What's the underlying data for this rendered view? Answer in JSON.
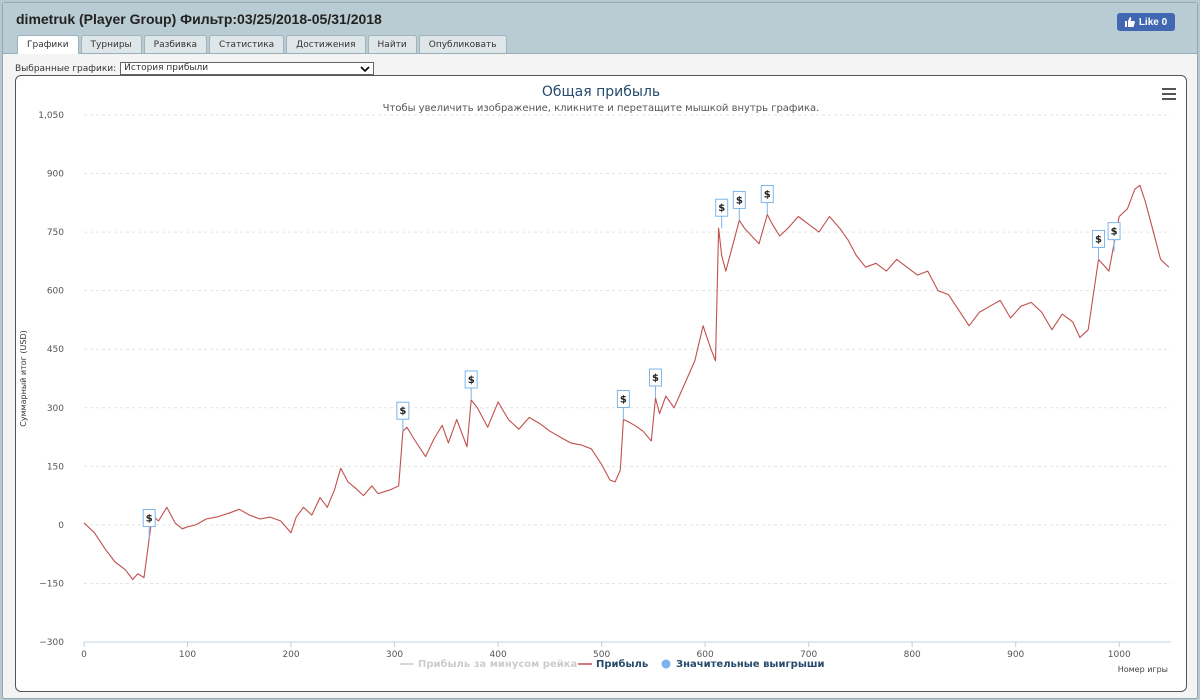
{
  "window": {
    "title": "dimetruk (Player Group) Фильтр:03/25/2018-05/31/2018"
  },
  "facebook": {
    "label": "Like 0"
  },
  "tabs": [
    {
      "label": "Графики",
      "active": true
    },
    {
      "label": "Турниры"
    },
    {
      "label": "Разбивка"
    },
    {
      "label": "Статистика"
    },
    {
      "label": "Достижения"
    },
    {
      "label": "Найти"
    },
    {
      "label": "Опубликовать"
    }
  ],
  "filter": {
    "label": "Выбранные графики:",
    "selected": "История прибыли"
  },
  "chart_data": {
    "type": "line",
    "title": "Общая прибыль",
    "subtitle": "Чтобы увеличить изображение, кликните и перетащите мышкой внутрь графика.",
    "xlabel": "Номер игры",
    "ylabel": "Суммарный итог (USD)",
    "xlim": [
      0,
      1050
    ],
    "ylim": [
      -300,
      1050
    ],
    "x_ticks": [
      0,
      100,
      200,
      300,
      400,
      500,
      600,
      700,
      800,
      900,
      1000
    ],
    "y_ticks": [
      -300,
      -150,
      0,
      150,
      300,
      450,
      600,
      750,
      900,
      1050
    ],
    "y_tick_labels": [
      "−300",
      "−150",
      "0",
      "150",
      "300",
      "450",
      "600",
      "750",
      "900",
      "1,050"
    ],
    "grid": "horizontal dashed",
    "legend_position": "bottom-center",
    "series": [
      {
        "name": "Прибыль за минусом рейка",
        "color": "#cccccc",
        "visible": false,
        "x": [],
        "y": []
      },
      {
        "name": "Прибыль",
        "color": "#c0504d",
        "x": [
          0,
          10,
          20,
          30,
          40,
          47,
          52,
          58,
          63,
          66,
          72,
          80,
          88,
          95,
          100,
          108,
          118,
          128,
          140,
          150,
          160,
          170,
          180,
          190,
          200,
          205,
          212,
          220,
          228,
          235,
          242,
          248,
          255,
          262,
          270,
          278,
          284,
          290,
          296,
          304,
          308,
          312,
          320,
          330,
          338,
          346,
          352,
          360,
          370,
          374,
          380,
          390,
          400,
          410,
          420,
          430,
          440,
          450,
          460,
          470,
          480,
          490,
          500,
          508,
          513,
          518,
          521,
          525,
          532,
          540,
          548,
          552,
          556,
          562,
          570,
          580,
          590,
          598,
          605,
          610,
          613,
          616,
          620,
          627,
          633,
          638,
          645,
          652,
          660,
          665,
          672,
          680,
          690,
          700,
          710,
          720,
          730,
          738,
          746,
          755,
          765,
          775,
          785,
          795,
          805,
          815,
          825,
          835,
          845,
          855,
          865,
          875,
          885,
          895,
          905,
          915,
          925,
          935,
          945,
          955,
          962,
          970,
          980,
          990,
          1000,
          1008,
          1015,
          1020,
          1025,
          1032,
          1040,
          1048
        ],
        "y": [
          5,
          -20,
          -60,
          -95,
          -115,
          -140,
          -125,
          -135,
          -35,
          25,
          10,
          45,
          5,
          -10,
          -5,
          0,
          15,
          20,
          30,
          40,
          25,
          15,
          20,
          10,
          -20,
          20,
          45,
          25,
          70,
          45,
          90,
          145,
          110,
          95,
          75,
          100,
          80,
          85,
          90,
          100,
          240,
          250,
          215,
          175,
          220,
          255,
          210,
          270,
          200,
          320,
          300,
          250,
          315,
          270,
          245,
          275,
          260,
          240,
          225,
          210,
          205,
          195,
          155,
          115,
          110,
          140,
          270,
          265,
          255,
          240,
          215,
          325,
          285,
          330,
          300,
          360,
          420,
          510,
          455,
          420,
          760,
          690,
          650,
          720,
          780,
          760,
          740,
          720,
          795,
          770,
          740,
          760,
          790,
          770,
          750,
          790,
          760,
          730,
          690,
          660,
          670,
          650,
          680,
          660,
          640,
          650,
          600,
          590,
          550,
          510,
          545,
          560,
          575,
          530,
          560,
          570,
          545,
          500,
          540,
          520,
          480,
          500,
          680,
          650,
          790,
          810,
          860,
          870,
          830,
          760,
          680,
          660
        ]
      }
    ],
    "big_wins": {
      "name": "Значительные выигрыши",
      "color": "#7cb5ec",
      "marker_label": "$",
      "x": [
        63,
        308,
        374,
        521,
        552,
        616,
        633,
        660,
        980,
        995
      ],
      "y": [
        -35,
        240,
        320,
        270,
        325,
        760,
        780,
        795,
        680,
        700
      ]
    }
  }
}
